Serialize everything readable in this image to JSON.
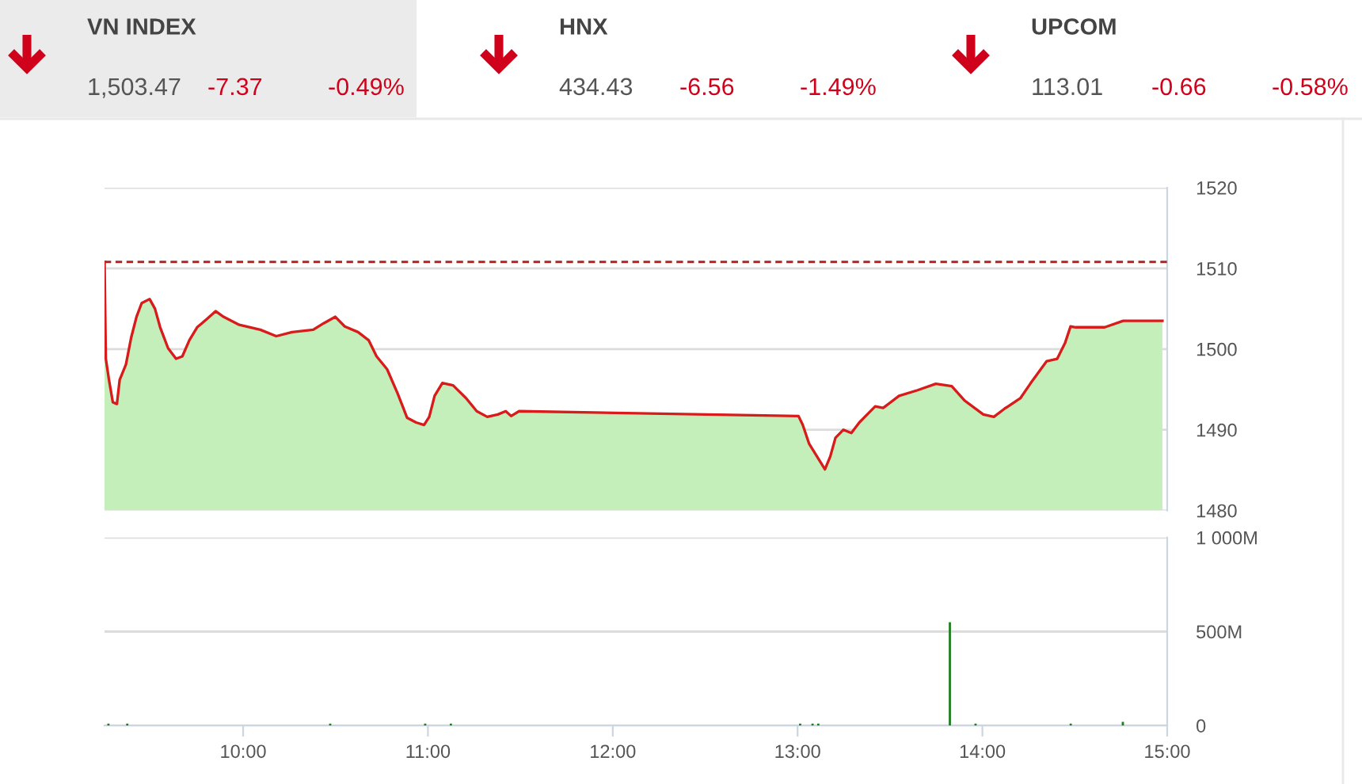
{
  "chart_data": [
    {
      "type": "other",
      "annotations": [
        "VN INDEX",
        "1,503.47",
        "-7.37",
        "-0.49%",
        "HNX",
        "434.43",
        "-6.56",
        "-1.49%",
        "UPCOM",
        "113.01",
        "-0.66",
        "-0.58%"
      ]
    },
    {
      "type": "area",
      "xlim": [
        9.25,
        15
      ],
      "ylim": [
        1480,
        1520
      ],
      "yticks": [
        1480,
        1490,
        1500,
        1510,
        1520
      ],
      "grid": "y",
      "tick_labels": "y",
      "ref_lines": [
        {
          "axis": "y",
          "value": 1510.8,
          "color": "#b22222",
          "line_style": "dashed"
        }
      ],
      "series": [
        {
          "type": "area",
          "color": "#c4efbb",
          "x": [
            9.25,
            9.257,
            9.274,
            9.295,
            9.317,
            9.332,
            9.366,
            9.394,
            9.423,
            9.451,
            9.494,
            9.523,
            9.551,
            9.594,
            9.637,
            9.671,
            9.709,
            9.751,
            9.803,
            9.851,
            9.894,
            9.979,
            10.093,
            10.179,
            10.265,
            10.379,
            10.436,
            10.499,
            10.55,
            10.622,
            10.679,
            10.722,
            10.779,
            10.836,
            10.887,
            10.936,
            10.979,
            11.007,
            11.036,
            11.078,
            11.136,
            11.207,
            11.264,
            11.321,
            11.378,
            11.421,
            11.45,
            11.493,
            13.005,
            13.028,
            13.062,
            13.105,
            13.148,
            13.177,
            13.205,
            13.248,
            13.291,
            13.334,
            13.42,
            13.463,
            13.549,
            13.649,
            13.748,
            13.834,
            13.905,
            14.005,
            14.062,
            14.119,
            14.205,
            14.262,
            14.348,
            14.405,
            14.448,
            14.477,
            14.505,
            14.662,
            14.762,
            14.974
          ],
          "values": [
            1510.8,
            1498.8,
            1496.2,
            1493.4,
            1493.2,
            1496.2,
            1498.1,
            1501.4,
            1504.0,
            1505.7,
            1506.2,
            1505.0,
            1502.7,
            1500.1,
            1498.8,
            1499.1,
            1501.1,
            1502.7,
            1503.7,
            1504.7,
            1504.0,
            1503.0,
            1502.4,
            1501.6,
            1502.1,
            1502.4,
            1503.2,
            1504.0,
            1502.8,
            1502.1,
            1501.1,
            1499.1,
            1497.5,
            1494.5,
            1491.5,
            1490.9,
            1490.6,
            1491.6,
            1494.2,
            1495.8,
            1495.5,
            1493.9,
            1492.3,
            1491.6,
            1491.9,
            1492.3,
            1491.7,
            1492.3,
            1491.7,
            1490.6,
            1488.3,
            1486.7,
            1485.1,
            1486.7,
            1489.0,
            1490.0,
            1489.6,
            1490.9,
            1492.9,
            1492.7,
            1494.2,
            1494.9,
            1495.7,
            1495.4,
            1493.6,
            1491.9,
            1491.6,
            1492.6,
            1493.9,
            1495.8,
            1498.5,
            1498.8,
            1500.8,
            1502.8,
            1502.7,
            1502.7,
            1503.5,
            1503.5
          ]
        },
        {
          "type": "line",
          "color": "#d81b1b",
          "x": [
            9.25,
            9.257,
            9.274,
            9.295,
            9.317,
            9.332,
            9.366,
            9.394,
            9.423,
            9.451,
            9.494,
            9.523,
            9.551,
            9.594,
            9.637,
            9.671,
            9.709,
            9.751,
            9.803,
            9.851,
            9.894,
            9.979,
            10.093,
            10.179,
            10.265,
            10.379,
            10.436,
            10.499,
            10.55,
            10.622,
            10.679,
            10.722,
            10.779,
            10.836,
            10.887,
            10.936,
            10.979,
            11.007,
            11.036,
            11.078,
            11.136,
            11.207,
            11.264,
            11.321,
            11.378,
            11.421,
            11.45,
            11.493,
            13.005,
            13.028,
            13.062,
            13.105,
            13.148,
            13.177,
            13.205,
            13.248,
            13.291,
            13.334,
            13.42,
            13.463,
            13.549,
            13.649,
            13.748,
            13.834,
            13.905,
            14.005,
            14.062,
            14.119,
            14.205,
            14.262,
            14.348,
            14.405,
            14.448,
            14.477,
            14.505,
            14.662,
            14.762,
            14.974
          ],
          "values": [
            1510.8,
            1498.8,
            1496.2,
            1493.4,
            1493.2,
            1496.2,
            1498.1,
            1501.4,
            1504.0,
            1505.7,
            1506.2,
            1505.0,
            1502.7,
            1500.1,
            1498.8,
            1499.1,
            1501.1,
            1502.7,
            1503.7,
            1504.7,
            1504.0,
            1503.0,
            1502.4,
            1501.6,
            1502.1,
            1502.4,
            1503.2,
            1504.0,
            1502.8,
            1502.1,
            1501.1,
            1499.1,
            1497.5,
            1494.5,
            1491.5,
            1490.9,
            1490.6,
            1491.6,
            1494.2,
            1495.8,
            1495.5,
            1493.9,
            1492.3,
            1491.6,
            1491.9,
            1492.3,
            1491.7,
            1492.3,
            1491.7,
            1490.6,
            1488.3,
            1486.7,
            1485.1,
            1486.7,
            1489.0,
            1490.0,
            1489.6,
            1490.9,
            1492.9,
            1492.7,
            1494.2,
            1494.9,
            1495.7,
            1495.4,
            1493.6,
            1491.9,
            1491.6,
            1492.6,
            1493.9,
            1495.8,
            1498.5,
            1498.8,
            1500.8,
            1502.8,
            1502.7,
            1502.7,
            1503.5,
            1503.5
          ]
        }
      ]
    },
    {
      "type": "bar",
      "xlim": [
        9.25,
        15
      ],
      "xticks": [
        {
          "value": 10,
          "label": "10:00"
        },
        {
          "value": 11,
          "label": "11:00"
        },
        {
          "value": 12,
          "label": "12:00"
        },
        {
          "value": 13,
          "label": "13:00"
        },
        {
          "value": 14,
          "label": "14:00"
        },
        {
          "value": 15,
          "label": "15:00"
        }
      ],
      "ylim": [
        0,
        1000
      ],
      "yticks": [
        0,
        {
          "value": 500,
          "label": "500M"
        },
        {
          "value": 1000,
          "label": "1 000M"
        }
      ],
      "grid": "y",
      "series": [
        {
          "color": "#1e7e1e",
          "x": [
            9.271,
            9.373,
            10.471,
            10.985,
            11.124,
            13.014,
            13.081,
            13.112,
            13.824,
            13.963,
            14.478,
            14.76
          ],
          "values": [
            10,
            10,
            10,
            10,
            10,
            10,
            10,
            10,
            550,
            10,
            10,
            20
          ]
        }
      ]
    }
  ]
}
